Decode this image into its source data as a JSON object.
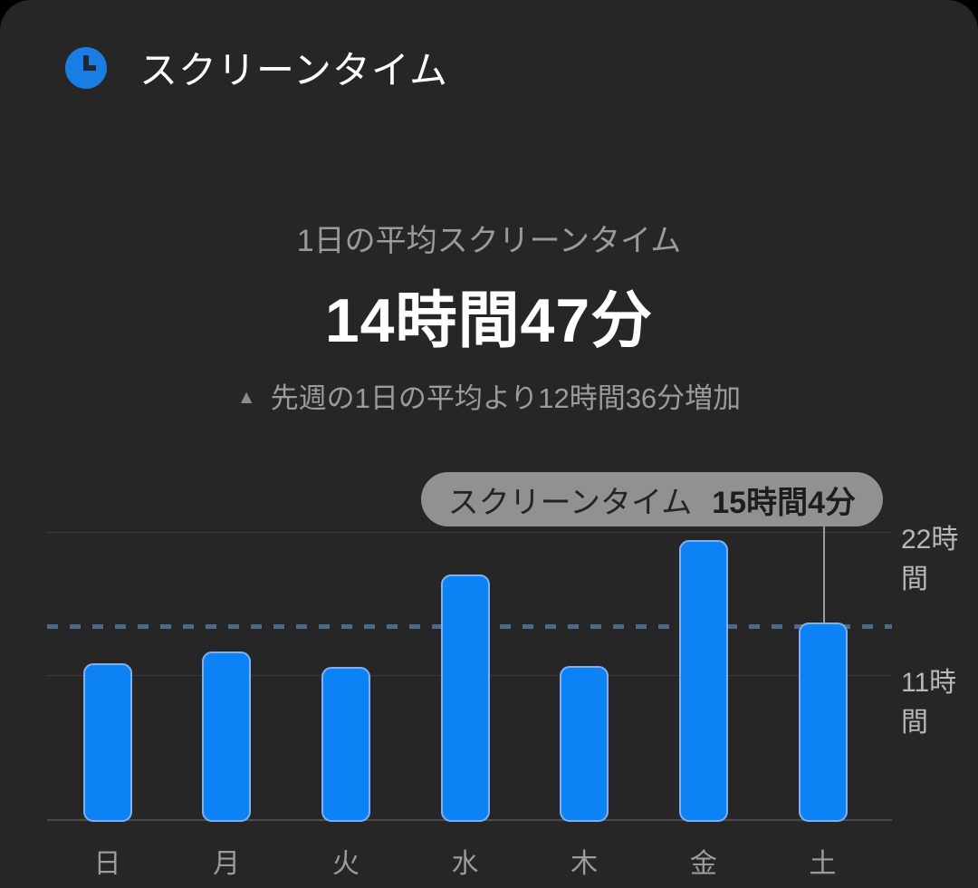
{
  "header": {
    "title": "スクリーンタイム",
    "icon": "clock-icon"
  },
  "summary": {
    "subtitle": "1日の平均スクリーンタイム",
    "average_value": "14時間47分",
    "change_indicator": "▲",
    "change_text": "先週の1日の平均より12時間36分増加"
  },
  "tooltip": {
    "label": "スクリーンタイム",
    "value": "15時間4分"
  },
  "chart_data": {
    "type": "bar",
    "categories": [
      "日",
      "月",
      "火",
      "水",
      "木",
      "金",
      "土"
    ],
    "values_hours": [
      11.9,
      12.8,
      11.6,
      18.7,
      11.7,
      21.4,
      15.07
    ],
    "selected_index": 6,
    "selected_tooltip": "スクリーンタイム 15時間4分",
    "average_hours": 14.78,
    "average_value_label": "14時間47分",
    "y_ticks": [
      {
        "value": 22,
        "label": "22時間"
      },
      {
        "value": 11,
        "label": "11時間"
      }
    ],
    "ylim": [
      0,
      22
    ],
    "grid": "horizontal-only",
    "legend": "none",
    "average_line_style": "dashed"
  },
  "colors": {
    "accent": "#1a7de4",
    "bar_fill": "#0d82f4",
    "bar_border": "#7fb0f2",
    "average_line": "#4b6a88",
    "tooltip_bg": "#919191",
    "card_bg": "#262627"
  }
}
